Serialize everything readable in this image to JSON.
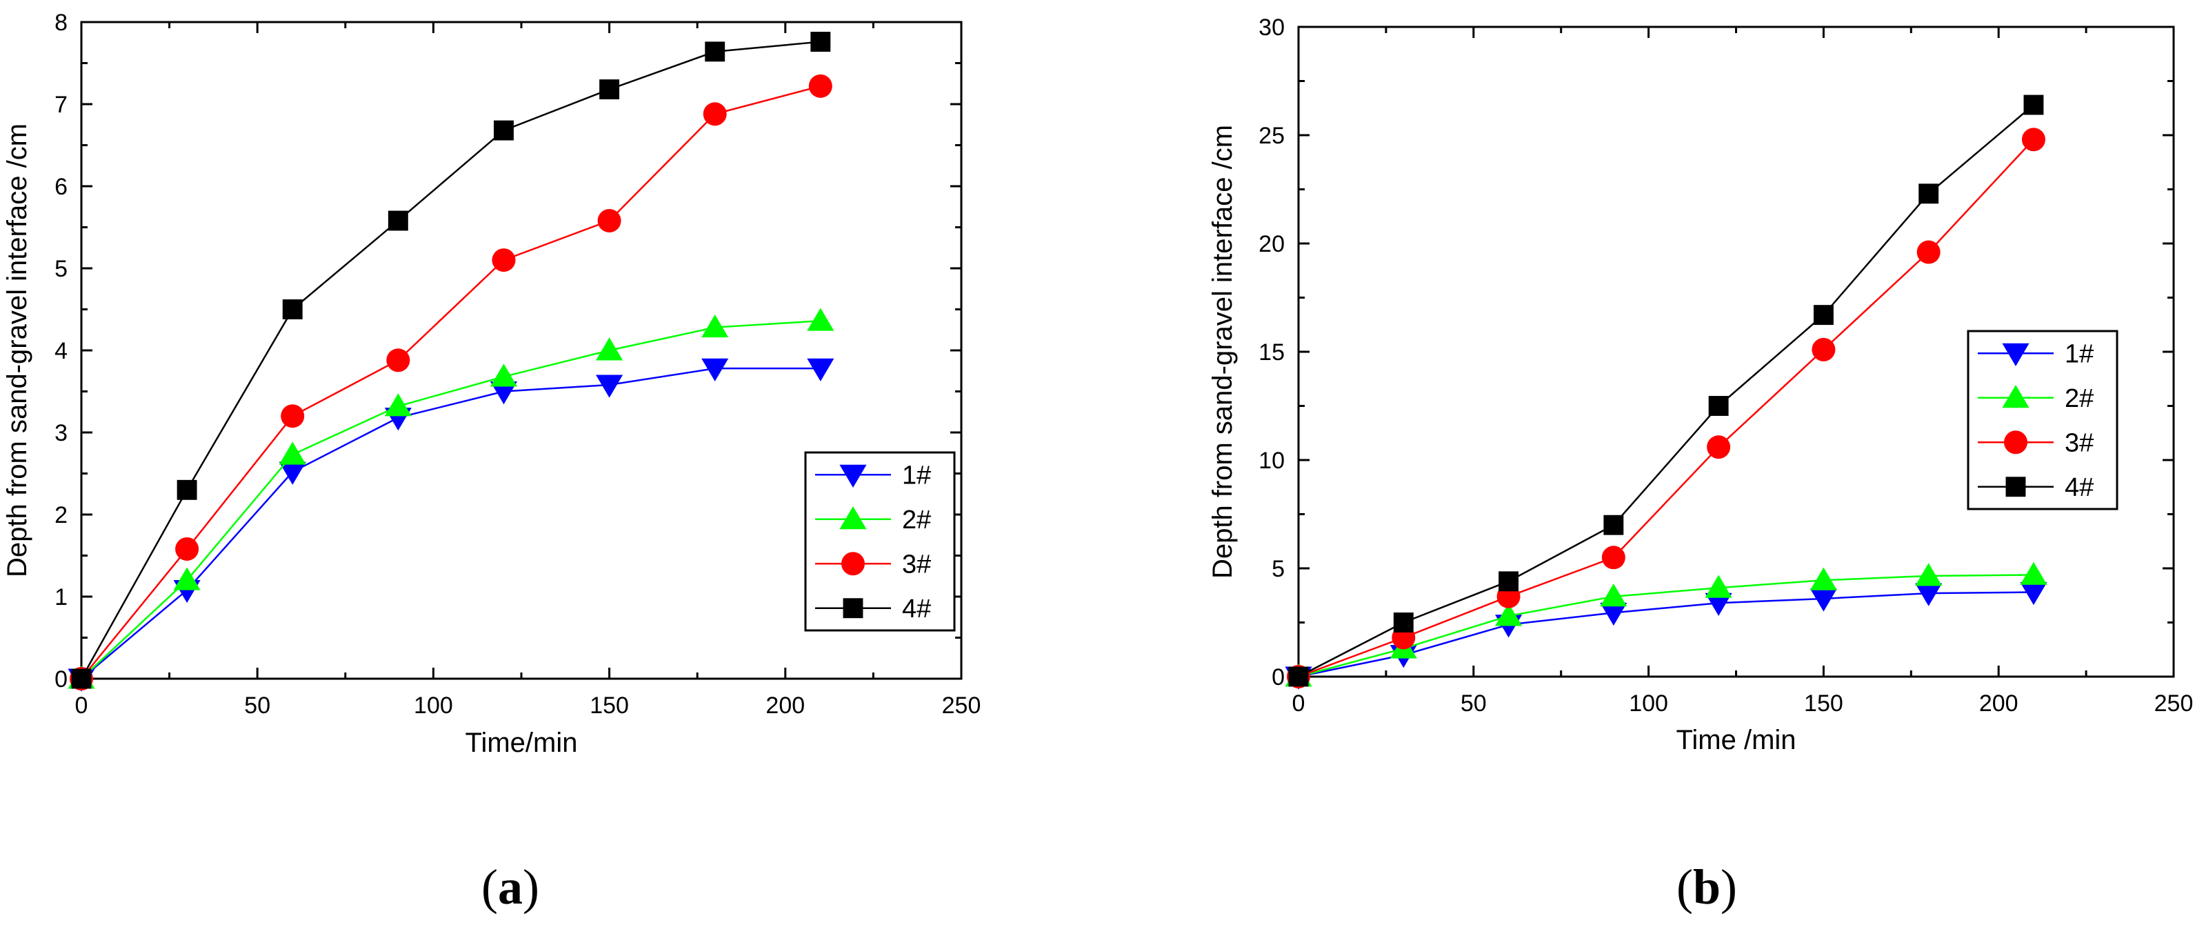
{
  "chart_data": [
    {
      "type": "line",
      "panel_label": "a",
      "xlabel": "Time/min",
      "ylabel": "Depth from sand-gravel interface /cm",
      "xlim": [
        0,
        250
      ],
      "ylim": [
        0,
        8
      ],
      "xticks": [
        0,
        50,
        100,
        150,
        200,
        250
      ],
      "yticks": [
        0,
        1,
        2,
        3,
        4,
        5,
        6,
        7,
        8
      ],
      "legend_position": "lower-right",
      "x": [
        0,
        30,
        60,
        90,
        120,
        150,
        180,
        210
      ],
      "series": [
        {
          "name": "1#",
          "color": "#0000ff",
          "marker": "triangle-down",
          "values": [
            0,
            1.08,
            2.52,
            3.18,
            3.5,
            3.58,
            3.78,
            3.78
          ]
        },
        {
          "name": "2#",
          "color": "#00ff00",
          "marker": "triangle-up",
          "values": [
            0,
            1.2,
            2.73,
            3.32,
            3.68,
            4.0,
            4.28,
            4.36
          ]
        },
        {
          "name": "3#",
          "color": "#ff0000",
          "marker": "circle",
          "values": [
            0,
            1.58,
            3.2,
            3.88,
            5.1,
            5.58,
            6.88,
            7.22
          ]
        },
        {
          "name": "4#",
          "color": "#000000",
          "marker": "square",
          "values": [
            0,
            2.3,
            4.5,
            5.58,
            6.68,
            7.18,
            7.64,
            7.76
          ]
        }
      ]
    },
    {
      "type": "line",
      "panel_label": "b",
      "xlabel": "Time /min",
      "ylabel": "Depth from sand-gravel interface /cm",
      "xlim": [
        0,
        250
      ],
      "ylim": [
        0,
        30
      ],
      "xticks": [
        0,
        50,
        100,
        150,
        200,
        250
      ],
      "yticks": [
        0,
        5,
        10,
        15,
        20,
        25,
        30
      ],
      "legend_position": "center-right",
      "x": [
        0,
        30,
        60,
        90,
        120,
        150,
        180,
        210
      ],
      "series": [
        {
          "name": "1#",
          "color": "#0000ff",
          "marker": "triangle-down",
          "values": [
            0,
            1.0,
            2.4,
            2.95,
            3.4,
            3.6,
            3.85,
            3.9
          ]
        },
        {
          "name": "2#",
          "color": "#00ff00",
          "marker": "triangle-up",
          "values": [
            0,
            1.3,
            2.8,
            3.7,
            4.1,
            4.45,
            4.65,
            4.7
          ]
        },
        {
          "name": "3#",
          "color": "#ff0000",
          "marker": "circle",
          "values": [
            0,
            1.8,
            3.7,
            5.5,
            10.6,
            15.1,
            19.6,
            24.8
          ]
        },
        {
          "name": "4#",
          "color": "#000000",
          "marker": "square",
          "values": [
            0,
            2.5,
            4.4,
            7.0,
            12.5,
            16.7,
            22.3,
            26.4
          ]
        }
      ]
    }
  ]
}
